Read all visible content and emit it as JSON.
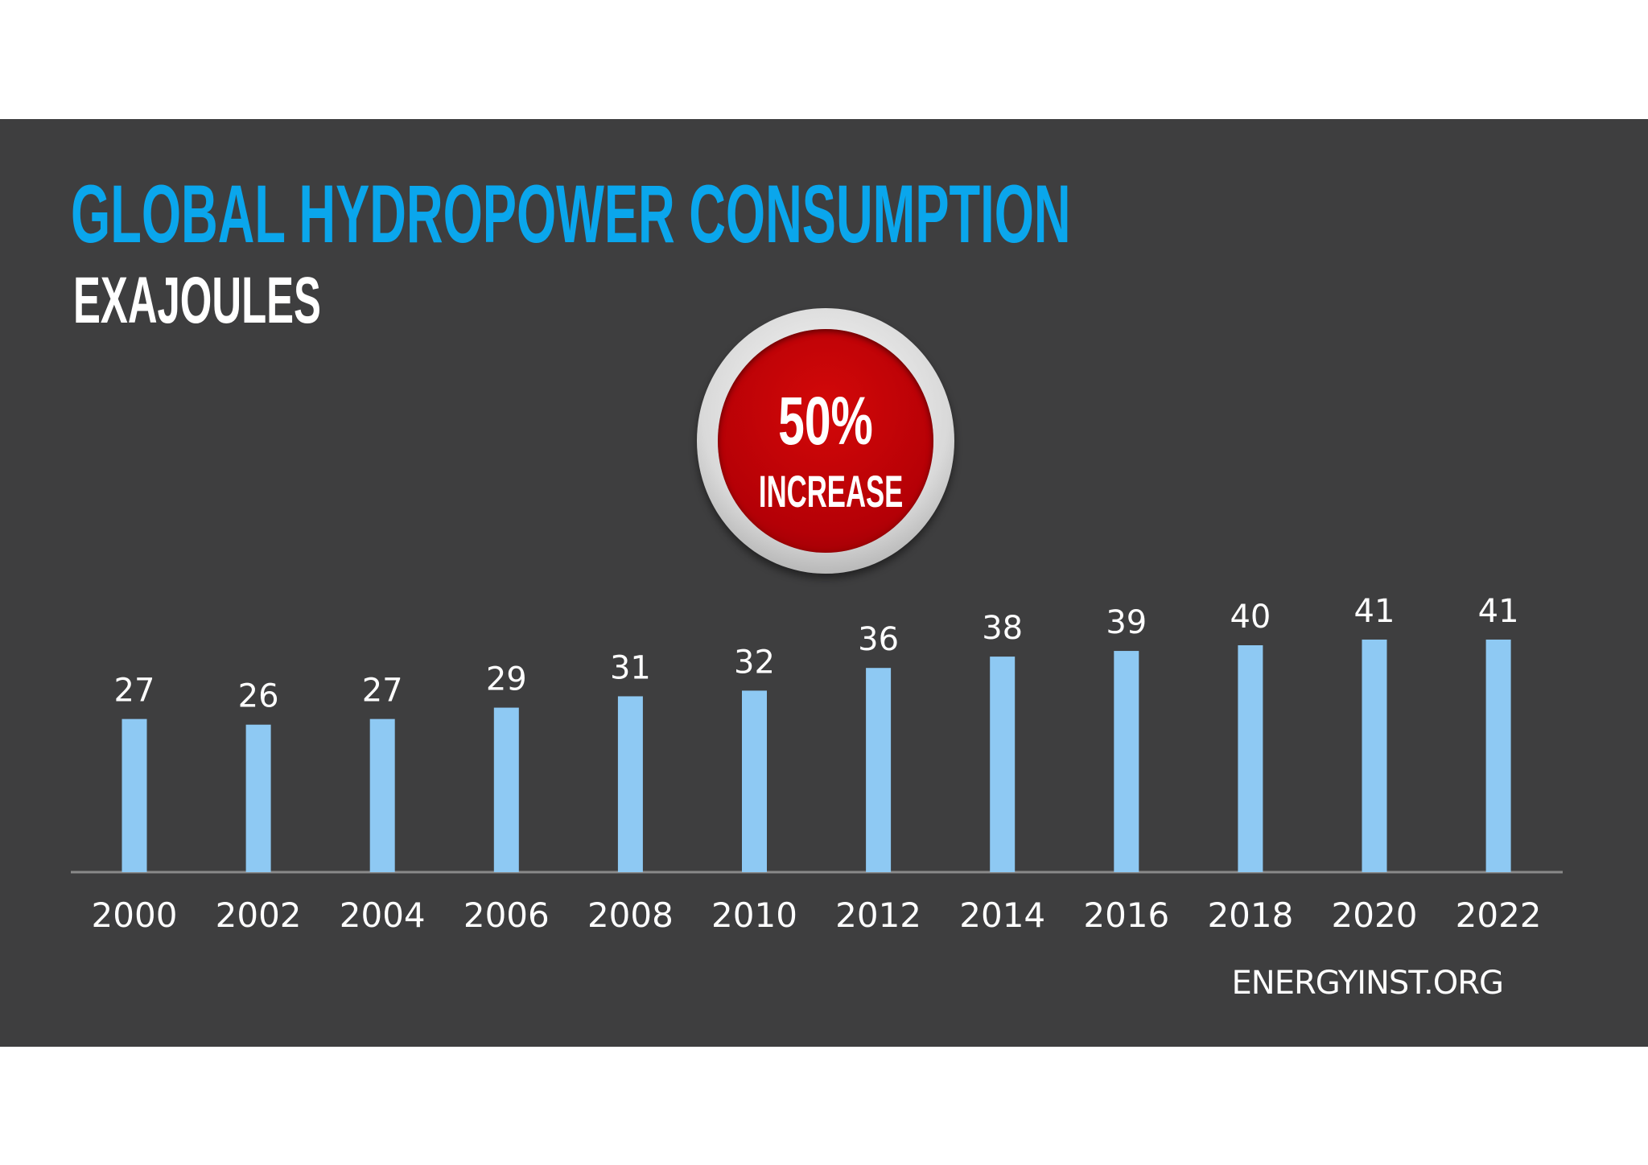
{
  "colors": {
    "panel_background": "#3e3e3f",
    "title": "#0aa6ec",
    "bar": "#8ec9f3",
    "badge": "#c4000a",
    "axis": "#8a8a8a",
    "text": "#ffffff"
  },
  "header": {
    "title": "GLOBAL HYDROPOWER CONSUMPTION",
    "subtitle": "EXAJOULES"
  },
  "badge": {
    "value": "50%",
    "label": "INCREASE"
  },
  "source": "ENERGYINST.ORG",
  "chart_data": {
    "type": "bar",
    "title": "GLOBAL HYDROPOWER CONSUMPTION",
    "subtitle": "EXAJOULES",
    "categories": [
      "2000",
      "2002",
      "2004",
      "2006",
      "2008",
      "2010",
      "2012",
      "2014",
      "2016",
      "2018",
      "2020",
      "2022"
    ],
    "values": [
      27,
      26,
      27,
      29,
      31,
      32,
      36,
      38,
      39,
      40,
      41,
      41
    ],
    "data_labels": [
      "27",
      "26",
      "27",
      "29",
      "31",
      "32",
      "36",
      "38",
      "39",
      "40",
      "41",
      "41"
    ],
    "xlabel": "",
    "ylabel": "",
    "ylim": [
      0,
      43
    ],
    "grid": false,
    "legend": "none"
  }
}
